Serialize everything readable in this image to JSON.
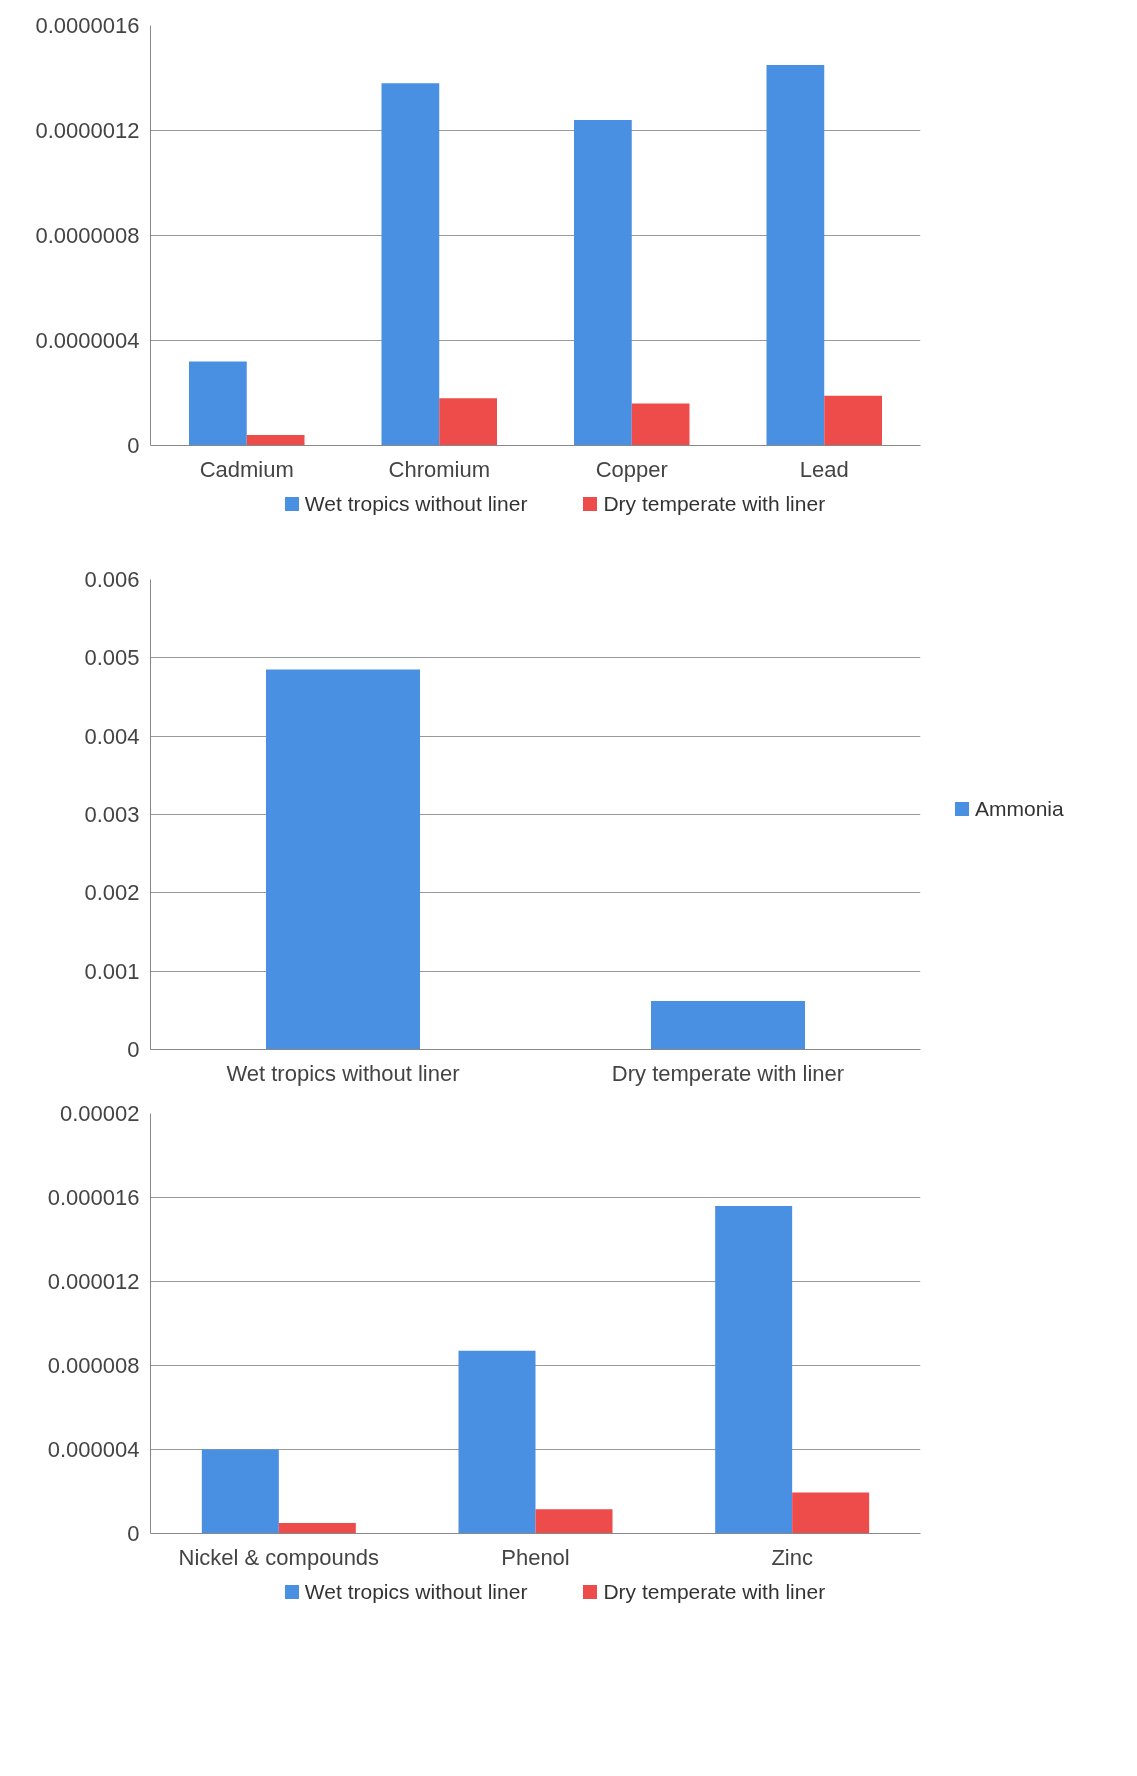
{
  "chart_data": [
    {
      "type": "bar",
      "categories": [
        "Cadmium",
        "Chromium",
        "Copper",
        "Lead"
      ],
      "series": [
        {
          "name": "Wet tropics without liner",
          "color": "#4a90e2",
          "values": [
            3.2e-07,
            1.38e-06,
            1.24e-06,
            1.45e-06
          ]
        },
        {
          "name": "Dry temperate with liner",
          "color": "#ee4b4b",
          "values": [
            4e-08,
            1.8e-07,
            1.6e-07,
            1.9e-07
          ]
        }
      ],
      "ylim": [
        0,
        1.6e-06
      ],
      "yticks": [
        0,
        {
          "value": 4e-07,
          "label": "0.0000004"
        },
        {
          "value": 8e-07,
          "label": "0.0000008"
        },
        {
          "value": 1.2e-06,
          "label": "0.0000012"
        },
        {
          "value": 1.6e-06,
          "label": "0.0000016"
        }
      ],
      "grid": "y",
      "legend": "bottom"
    },
    {
      "type": "bar",
      "categories": [
        "Wet tropics without liner",
        "Dry temperate with liner"
      ],
      "series": [
        {
          "name": "Ammonia",
          "color": "#4a90e2",
          "values": [
            0.00485,
            0.00062
          ]
        }
      ],
      "ylim": [
        0,
        0.006
      ],
      "yticks": [
        0,
        0.001,
        0.002,
        0.003,
        0.004,
        0.005,
        0.006
      ],
      "grid": "y",
      "legend": "right"
    },
    {
      "type": "bar",
      "categories": [
        "Nickel & compounds",
        "Phenol",
        "Zinc"
      ],
      "series": [
        {
          "name": "Wet tropics without liner",
          "color": "#4a90e2",
          "values": [
            4e-06,
            8.7e-06,
            1.56e-05
          ]
        },
        {
          "name": "Dry temperate with liner",
          "color": "#ee4b4b",
          "values": [
            5e-07,
            1.15e-06,
            1.95e-06
          ]
        }
      ],
      "ylim": [
        0,
        2e-05
      ],
      "yticks": [
        0,
        {
          "value": 4e-06,
          "label": "0.000004"
        },
        {
          "value": 8e-06,
          "label": "0.000008"
        },
        {
          "value": 1.2e-05,
          "label": "0.000012"
        },
        {
          "value": 1.6e-05,
          "label": "0.000016"
        },
        {
          "value": 2e-05,
          "label": "0.00002"
        }
      ],
      "grid": "y",
      "legend": "bottom"
    }
  ]
}
